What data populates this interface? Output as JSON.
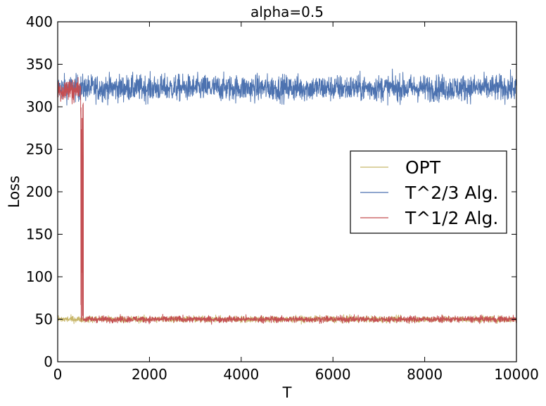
{
  "chart_data": {
    "type": "line",
    "title": "alpha=0.5",
    "xlabel": "T",
    "ylabel": "Loss",
    "xlim": [
      0,
      10000
    ],
    "ylim": [
      0,
      400
    ],
    "xticks": [
      0,
      2000,
      4000,
      6000,
      8000,
      10000
    ],
    "yticks": [
      0,
      50,
      100,
      150,
      200,
      250,
      300,
      350,
      400
    ],
    "grid": false,
    "legend_position": "center-right",
    "series": [
      {
        "name": "OPT",
        "color": "#c8b76a",
        "description_values": {
          "segments": [
            {
              "x": [
                0,
                10000
              ],
              "mean": 50,
              "spread": 3
            }
          ]
        }
      },
      {
        "name": "T^2/3 Alg.",
        "color": "#4c72b0",
        "description_values": {
          "segments": [
            {
              "x": [
                0,
                10000
              ],
              "mean": 322,
              "spread": 12
            }
          ]
        }
      },
      {
        "name": "T^1/2 Alg.",
        "color": "#c44e52",
        "description_values": {
          "segments": [
            {
              "x": [
                0,
                500
              ],
              "mean": 320,
              "spread": 12
            },
            {
              "x": [
                500,
                560
              ],
              "mean": 180,
              "spread": 90
            },
            {
              "x": [
                560,
                10000
              ],
              "mean": 50,
              "spread": 3
            }
          ]
        }
      }
    ]
  }
}
